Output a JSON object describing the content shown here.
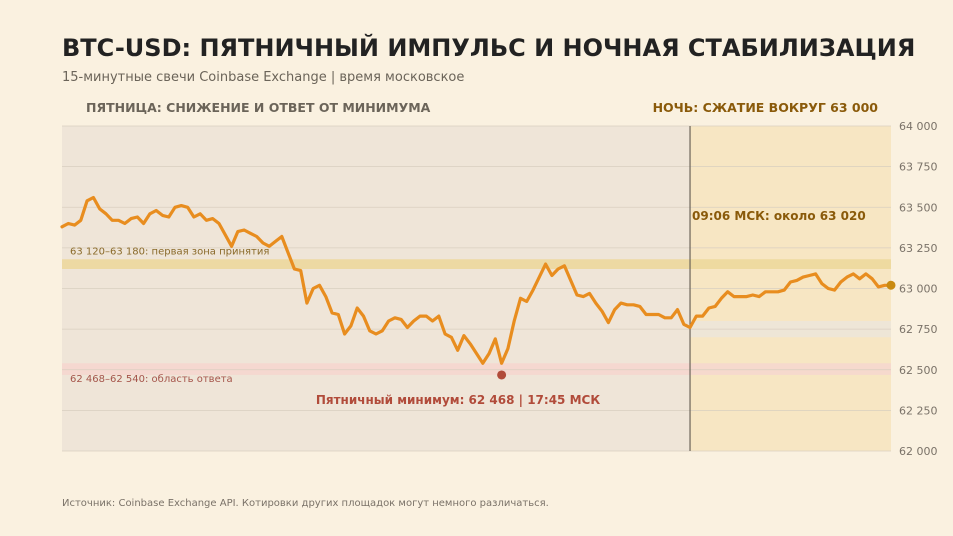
{
  "title": "BTC-USD: ПЯТНИЧНЫЙ ИМПУЛЬС И НОЧНАЯ СТАБИЛИЗАЦИЯ",
  "subtitle": "15-минутные свечи Coinbase Exchange | время московское",
  "source": "Источник: Coinbase Exchange API. Котировки других площадок могут немного различаться.",
  "colors": {
    "line": "#e88d1f",
    "friday_panel": "#efe5d8",
    "night_panel": "#f7e6c3",
    "acceptance_band": "#ecd79a",
    "response_band": "#f6d6cf",
    "low_marker": "#b14b3a",
    "end_marker": "#c98a10",
    "night_text": "#8a5a0a",
    "low_text": "#b14b3a"
  },
  "chart_data": {
    "type": "line",
    "ylim": [
      62000,
      64000
    ],
    "yticks": [
      62000,
      62250,
      62500,
      62750,
      63000,
      63250,
      63500,
      63750,
      64000
    ],
    "ytick_labels": [
      "62 000",
      "62 250",
      "62 500",
      "62 750",
      "63 000",
      "63 250",
      "63 500",
      "63 750",
      "64 000"
    ],
    "grid": true,
    "values": [
      63380,
      63400,
      63390,
      63420,
      63540,
      63560,
      63490,
      63460,
      63420,
      63420,
      63400,
      63430,
      63440,
      63400,
      63460,
      63480,
      63450,
      63440,
      63500,
      63510,
      63500,
      63440,
      63460,
      63420,
      63430,
      63400,
      63330,
      63260,
      63350,
      63360,
      63340,
      63320,
      63280,
      63260,
      63290,
      63320,
      63220,
      63120,
      63110,
      62910,
      63000,
      63020,
      62950,
      62850,
      62840,
      62720,
      62770,
      62880,
      62830,
      62740,
      62720,
      62740,
      62800,
      62820,
      62810,
      62760,
      62800,
      62830,
      62830,
      62800,
      62830,
      62720,
      62700,
      62620,
      62710,
      62660,
      62600,
      62540,
      62600,
      62690,
      62540,
      62630,
      62800,
      62940,
      62920,
      62990,
      63070,
      63150,
      63080,
      63120,
      63140,
      63050,
      62960,
      62950,
      62970,
      62910,
      62860,
      62790,
      62870,
      62910,
      62900,
      62900,
      62890,
      62840,
      62840,
      62840,
      62820,
      62820,
      62870,
      62780,
      62760,
      62830,
      62830,
      62880,
      62890,
      62940,
      62980,
      62950,
      62950,
      62950,
      62960,
      62950,
      62980,
      62980,
      62980,
      62990,
      63040,
      63050,
      63070,
      63080,
      63090,
      63030,
      63000,
      62990,
      63040,
      63070,
      63090,
      63060,
      63090,
      63060,
      63010,
      63020,
      63020
    ],
    "night_start_index": 100,
    "bands": [
      {
        "low": 63120,
        "high": 63180,
        "label": "63 120–63 180: первая зона принятия",
        "region": "all"
      },
      {
        "low": 62468,
        "high": 62540,
        "label": "62 468–62 540: область ответа",
        "region": "all"
      },
      {
        "low": 62700,
        "high": 62800,
        "label": "",
        "region": "night"
      }
    ],
    "panels": {
      "friday": "ПЯТНИЦА: СНИЖЕНИЕ И ОТВЕТ ОТ МИНИМУМА",
      "night": "НОЧЬ: СЖАТИЕ ВОКРУГ 63 000"
    },
    "annotations": {
      "night_note": "09:06 МСК: около 63 020",
      "low_note": "Пятничный минимум: 62 468 | 17:45 МСК",
      "low_value": 62468,
      "low_index": 70,
      "end_value": 63020
    }
  }
}
